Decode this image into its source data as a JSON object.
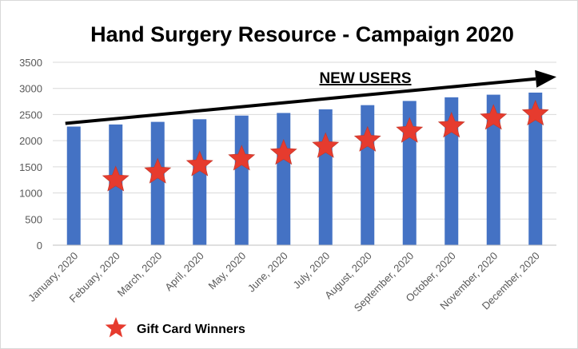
{
  "chart_data": {
    "type": "bar",
    "title": "Hand Surgery Resource - Campaign 2020",
    "categories": [
      "January, 2020",
      "Febuary, 2020",
      "March, 2020",
      "April, 2020",
      "May, 2020",
      "June, 2020",
      "July, 2020",
      "August, 2020",
      "September, 2020",
      "October, 2020",
      "November, 2020",
      "December, 2020"
    ],
    "series": [
      {
        "kind": "bar",
        "color": "#4472C4",
        "values": [
          2270,
          2310,
          2360,
          2410,
          2480,
          2530,
          2600,
          2680,
          2760,
          2830,
          2880,
          2920
        ]
      },
      {
        "kind": "star-markers",
        "name": "Gift Card Winners",
        "color": "#E63B2E",
        "values": [
          null,
          1250,
          1400,
          1540,
          1650,
          1760,
          1890,
          2010,
          2180,
          2280,
          2430,
          2510
        ]
      }
    ],
    "ylim": [
      0,
      3500
    ],
    "yticks": [
      0,
      500,
      1000,
      1500,
      2000,
      2500,
      3000,
      3500
    ],
    "xlabel": "",
    "ylabel": "",
    "grid": true,
    "annotation": {
      "text": "NEW USERS",
      "arrow": {
        "from": [
          -0.2,
          2330
        ],
        "to": [
          11.5,
          3220
        ]
      }
    },
    "legend": {
      "position": "bottom-left"
    }
  }
}
